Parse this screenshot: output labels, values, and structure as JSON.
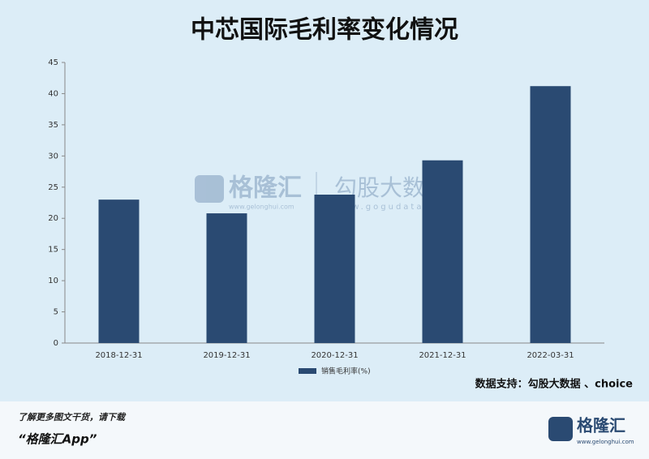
{
  "chart_data": {
    "type": "bar",
    "title": "中芯国际毛利率变化情况",
    "categories": [
      "2018-12-31",
      "2019-12-31",
      "2020-12-31",
      "2021-12-31",
      "2022-03-31"
    ],
    "series": [
      {
        "name": "销售毛利率(%)",
        "color": "#2a4a72",
        "values": [
          23.0,
          20.8,
          23.8,
          29.3,
          41.2
        ]
      }
    ],
    "ylim": [
      0,
      45
    ],
    "yticks": [
      0,
      5,
      10,
      15,
      20,
      25,
      30,
      35,
      40,
      45
    ],
    "source": "数据支持：勾股大数据 、choice"
  },
  "watermark": {
    "brand": "格隆汇",
    "brand_url": "www.gelonghui.com",
    "partner": "勾股大数据",
    "partner_url": "www.gogudata.com"
  },
  "footer": {
    "line1": "了解更多图文干货，请下载",
    "line2": "“格隆汇App”",
    "logo": "格隆汇",
    "logo_url": "www.gelonghui.com"
  }
}
